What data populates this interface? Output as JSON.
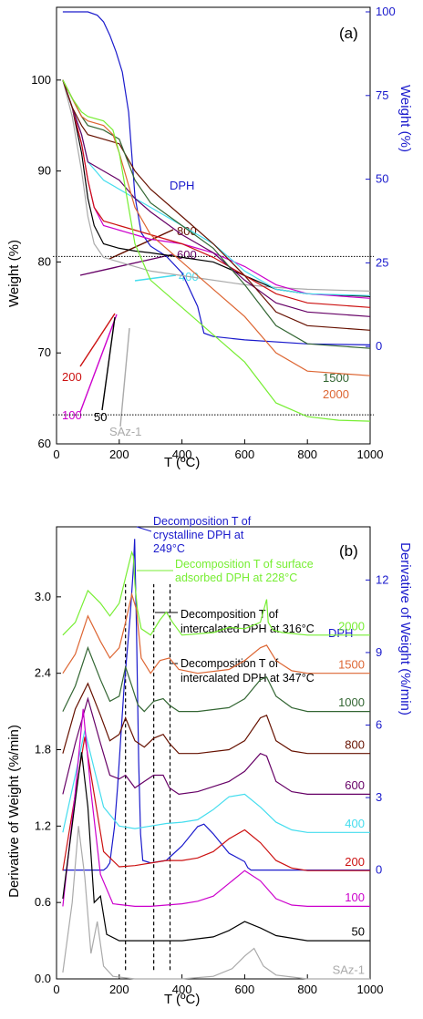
{
  "colors": {
    "DPH": "#1a1acc",
    "SAz-1": "#aaaaaa",
    "50": "#000000",
    "100": "#cc00cc",
    "200": "#cc1111",
    "400": "#44ddee",
    "600": "#660066",
    "800": "#661100",
    "1000": "#336633",
    "1500": "#dd6633",
    "2000": "#77ee33"
  },
  "chart_data": [
    {
      "type": "line",
      "panel_label": "(a)",
      "xlabel": "T (ºC)",
      "ylabel": "Weight (%)",
      "ylabel_right": "Weight (%)",
      "xlim": [
        0,
        1000
      ],
      "ylim": [
        60,
        108
      ],
      "ylim_right": [
        0,
        100
      ],
      "xticks": [
        "0",
        "200",
        "400",
        "600",
        "800",
        "1000"
      ],
      "yticks": [
        "60",
        "70",
        "80",
        "90",
        "100"
      ],
      "yticks_right": [
        "0",
        "25",
        "50",
        "75",
        "100"
      ],
      "hlines": [
        80.6,
        63.2
      ],
      "arrow_labels": [
        "800",
        "600",
        "400",
        "200",
        "100",
        "50",
        "SAz-1"
      ],
      "series": [
        {
          "name": "DPH",
          "axis": "right",
          "x": [
            20,
            100,
            130,
            150,
            170,
            190,
            210,
            230,
            250,
            270,
            300,
            350,
            400,
            450,
            470,
            500,
            600,
            800,
            1000
          ],
          "y": [
            100,
            100,
            99,
            97,
            93,
            88,
            82,
            70,
            45,
            34,
            30,
            27,
            22,
            12,
            4,
            3,
            2,
            0.8,
            0.5
          ]
        },
        {
          "name": "SAz-1",
          "x": [
            20,
            50,
            80,
            100,
            120,
            150,
            200,
            250,
            300,
            400,
            500,
            600,
            700,
            800,
            1000
          ],
          "y": [
            100,
            96,
            90,
            85,
            82,
            80.5,
            80,
            79.5,
            79,
            78.5,
            78,
            77.5,
            77.2,
            77,
            76.8
          ]
        },
        {
          "name": "50",
          "x": [
            20,
            50,
            80,
            100,
            120,
            150,
            200,
            250,
            300,
            400,
            500,
            600,
            700,
            800,
            1000
          ],
          "y": [
            100,
            97,
            92,
            87,
            84,
            82,
            81.5,
            81.2,
            81,
            80.5,
            80,
            78.5,
            77,
            76.5,
            76.2
          ]
        },
        {
          "name": "100",
          "x": [
            20,
            50,
            80,
            100,
            120,
            150,
            200,
            250,
            300,
            400,
            500,
            600,
            700,
            800,
            1000
          ],
          "y": [
            100,
            97,
            93,
            89,
            86,
            84,
            83.5,
            83,
            82.5,
            82,
            81,
            79.5,
            77.5,
            76.5,
            76
          ]
        },
        {
          "name": "200",
          "x": [
            20,
            50,
            80,
            100,
            120,
            150,
            200,
            250,
            300,
            400,
            500,
            600,
            700,
            800,
            1000
          ],
          "y": [
            100,
            97,
            93,
            89,
            86,
            84.5,
            84,
            83.5,
            83,
            82,
            80.5,
            78.5,
            76.5,
            75.5,
            75
          ]
        },
        {
          "name": "400",
          "x": [
            20,
            50,
            80,
            100,
            150,
            200,
            250,
            300,
            400,
            500,
            600,
            700,
            800,
            1000
          ],
          "y": [
            100,
            97,
            94,
            91,
            89,
            88,
            87,
            86,
            84,
            82,
            79,
            77,
            76.5,
            76.3
          ]
        },
        {
          "name": "600",
          "x": [
            20,
            50,
            80,
            100,
            150,
            200,
            250,
            300,
            400,
            500,
            600,
            700,
            800,
            1000
          ],
          "y": [
            100,
            97,
            94,
            91,
            90,
            89,
            87,
            85.5,
            83,
            81,
            78,
            75.5,
            74.5,
            74
          ]
        },
        {
          "name": "800",
          "x": [
            20,
            50,
            80,
            100,
            150,
            200,
            250,
            300,
            400,
            500,
            600,
            700,
            800,
            1000
          ],
          "y": [
            100,
            97,
            95,
            94,
            93.5,
            93,
            90,
            88,
            85,
            82,
            78.5,
            74.5,
            73,
            72.5
          ]
        },
        {
          "name": "1000",
          "x": [
            20,
            50,
            80,
            100,
            150,
            200,
            250,
            300,
            400,
            500,
            600,
            700,
            800,
            1000
          ],
          "y": [
            100,
            98,
            96,
            95,
            94.5,
            93.5,
            89,
            86.5,
            84,
            81.5,
            77.5,
            73,
            71,
            70.5
          ]
        },
        {
          "name": "1500",
          "x": [
            20,
            50,
            80,
            100,
            150,
            180,
            200,
            250,
            300,
            400,
            500,
            600,
            700,
            800,
            1000
          ],
          "y": [
            100,
            98,
            96,
            95.5,
            95,
            94,
            92,
            86,
            83,
            80,
            77,
            74,
            70,
            68,
            67.5
          ]
        },
        {
          "name": "2000",
          "x": [
            20,
            50,
            80,
            100,
            150,
            180,
            200,
            230,
            250,
            300,
            400,
            500,
            600,
            700,
            800,
            900,
            1000
          ],
          "y": [
            100,
            98,
            96.5,
            96,
            95.5,
            94.5,
            92,
            86,
            82,
            78,
            75,
            72,
            69,
            64.5,
            63,
            62.6,
            62.5
          ]
        }
      ]
    },
    {
      "type": "line",
      "panel_label": "(b)",
      "xlabel": "T (ºC)",
      "ylabel": "Derivative of Weight (%/min)",
      "ylabel_right": "Derivative of Weight (%/min)",
      "xlim": [
        0,
        1000
      ],
      "ylim": [
        0,
        3.55
      ],
      "ylim_right": [
        -4.5,
        14.2
      ],
      "xticks": [
        "0",
        "200",
        "400",
        "600",
        "800",
        "1000"
      ],
      "yticks": [
        "0.0",
        "0.6",
        "1.2",
        "1.8",
        "2.4",
        "3.0"
      ],
      "yticks_right": [
        "0",
        "3",
        "6",
        "9",
        "12"
      ],
      "vlines": [
        220,
        310,
        362
      ],
      "annotations": [
        {
          "text": [
            "Decomposition T of",
            "crystalline DPH at",
            "249°C"
          ],
          "color": "#1a1acc"
        },
        {
          "text": [
            "Decomposition T of surface",
            "adsorbed DPH at 228°C"
          ],
          "color": "#77ee33"
        },
        {
          "text": [
            "Decomposition T of",
            "intercalated DPH at 316°C"
          ],
          "color": "#000000"
        },
        {
          "text": [
            "Decomposition T of",
            "intercalated DPH at 347°C"
          ],
          "color": "#000000"
        }
      ],
      "series": [
        {
          "name": "DPH",
          "axis": "right",
          "x": [
            20,
            150,
            160,
            170,
            175,
            185,
            195,
            205,
            215,
            225,
            235,
            245,
            249,
            255,
            262,
            268,
            275,
            300,
            350,
            400,
            450,
            470,
            500,
            550,
            600,
            610,
            620,
            700,
            800,
            1000
          ],
          "y": [
            0,
            0,
            0.1,
            0.3,
            0.8,
            1.8,
            3.5,
            5.5,
            7.5,
            9,
            10.5,
            12.5,
            13.7,
            10,
            4.5,
            1.5,
            0.4,
            0.3,
            0.4,
            1,
            1.8,
            1.9,
            1.5,
            0.7,
            0.35,
            0.1,
            0,
            0,
            0,
            0
          ]
        },
        {
          "name": "2000",
          "offset": 2.7,
          "x": [
            20,
            60,
            100,
            140,
            170,
            200,
            230,
            240,
            245,
            250,
            258,
            270,
            300,
            330,
            350,
            370,
            400,
            500,
            550,
            600,
            650,
            670,
            675,
            690,
            720,
            800,
            1000
          ],
          "y": [
            0,
            0.1,
            0.35,
            0.25,
            0.15,
            0.25,
            0.55,
            0.65,
            0.62,
            0.4,
            0.2,
            0.05,
            0.0,
            0.12,
            0.18,
            0.1,
            0.0,
            0.02,
            0.06,
            0.05,
            0.1,
            0.28,
            0.1,
            0.04,
            0.02,
            0.0,
            0.0
          ]
        },
        {
          "name": "1500",
          "offset": 2.4,
          "x": [
            20,
            60,
            100,
            140,
            170,
            200,
            220,
            240,
            255,
            270,
            300,
            330,
            360,
            390,
            450,
            550,
            600,
            650,
            670,
            700,
            750,
            800,
            1000
          ],
          "y": [
            0,
            0.15,
            0.45,
            0.25,
            0.12,
            0.2,
            0.4,
            0.62,
            0.5,
            0.12,
            0.0,
            0.1,
            0.12,
            0.03,
            0.0,
            0.03,
            0.1,
            0.2,
            0.22,
            0.1,
            0.02,
            0.0,
            0.0
          ]
        },
        {
          "name": "1000",
          "offset": 2.1,
          "x": [
            20,
            60,
            100,
            140,
            170,
            200,
            220,
            240,
            260,
            280,
            310,
            340,
            360,
            390,
            450,
            550,
            600,
            650,
            670,
            700,
            750,
            800,
            1000
          ],
          "y": [
            0,
            0.2,
            0.5,
            0.25,
            0.08,
            0.12,
            0.35,
            0.2,
            0.05,
            0.0,
            0.08,
            0.1,
            0.05,
            0.0,
            0.0,
            0.03,
            0.1,
            0.25,
            0.27,
            0.12,
            0.03,
            0.0,
            0.0
          ]
        },
        {
          "name": "800",
          "offset": 1.77,
          "x": [
            20,
            60,
            100,
            140,
            170,
            200,
            220,
            250,
            280,
            310,
            340,
            360,
            390,
            450,
            550,
            600,
            650,
            670,
            700,
            750,
            800,
            1000
          ],
          "y": [
            0,
            0.35,
            0.55,
            0.3,
            0.1,
            0.15,
            0.28,
            0.1,
            0.05,
            0.12,
            0.15,
            0.08,
            0.0,
            0.0,
            0.03,
            0.1,
            0.28,
            0.3,
            0.1,
            0.02,
            0.0,
            0.0
          ]
        },
        {
          "name": "600",
          "offset": 1.45,
          "x": [
            20,
            60,
            100,
            140,
            170,
            200,
            220,
            250,
            280,
            310,
            340,
            360,
            390,
            450,
            550,
            600,
            650,
            670,
            700,
            750,
            800,
            1000
          ],
          "y": [
            0,
            0.4,
            0.75,
            0.4,
            0.15,
            0.12,
            0.15,
            0.05,
            0.1,
            0.15,
            0.15,
            0.05,
            0.0,
            0.02,
            0.1,
            0.18,
            0.32,
            0.3,
            0.1,
            0.02,
            0.0,
            0.0
          ]
        },
        {
          "name": "400",
          "offset": 1.15,
          "x": [
            20,
            60,
            90,
            120,
            150,
            200,
            250,
            300,
            350,
            400,
            450,
            500,
            550,
            600,
            650,
            700,
            750,
            800,
            1000
          ],
          "y": [
            0,
            0.45,
            0.8,
            0.5,
            0.2,
            0.05,
            0.03,
            0.05,
            0.07,
            0.08,
            0.1,
            0.18,
            0.28,
            0.3,
            0.2,
            0.08,
            0.02,
            0.0,
            0.0
          ]
        },
        {
          "name": "200",
          "offset": 0.85,
          "x": [
            20,
            60,
            90,
            120,
            150,
            200,
            250,
            300,
            350,
            400,
            450,
            500,
            550,
            600,
            650,
            700,
            750,
            800,
            1000
          ],
          "y": [
            0,
            0.6,
            1.05,
            0.6,
            0.15,
            0.03,
            0.04,
            0.06,
            0.08,
            0.08,
            0.1,
            0.15,
            0.25,
            0.32,
            0.22,
            0.08,
            0.02,
            0.0,
            0.0
          ]
        },
        {
          "name": "100",
          "offset": 0.57,
          "x": [
            20,
            60,
            85,
            110,
            140,
            180,
            250,
            300,
            400,
            450,
            500,
            550,
            600,
            650,
            700,
            750,
            800,
            1000
          ],
          "y": [
            0,
            0.9,
            1.55,
            0.9,
            0.25,
            0.02,
            0.0,
            0.0,
            0.02,
            0.04,
            0.08,
            0.18,
            0.28,
            0.2,
            0.06,
            0.01,
            0.0,
            0.0
          ]
        },
        {
          "name": "50",
          "offset": 0.3,
          "x": [
            20,
            60,
            80,
            100,
            120,
            140,
            160,
            200,
            300,
            400,
            500,
            550,
            600,
            650,
            700,
            800,
            1000
          ],
          "y": [
            0.33,
            1.1,
            1.48,
            1.05,
            0.3,
            0.35,
            0.05,
            0.0,
            0.0,
            0.0,
            0.03,
            0.08,
            0.15,
            0.1,
            0.04,
            0.0,
            0.0
          ]
        },
        {
          "name": "SAz-1",
          "offset": 0.0,
          "x": [
            20,
            50,
            70,
            90,
            110,
            130,
            150,
            180,
            250,
            400,
            500,
            560,
            600,
            630,
            660,
            700,
            800,
            1000
          ],
          "y": [
            0.05,
            0.6,
            1.2,
            0.8,
            0.2,
            0.45,
            0.1,
            0.02,
            0.0,
            0.0,
            0.02,
            0.08,
            0.18,
            0.24,
            0.1,
            0.03,
            0.0,
            0.0
          ]
        }
      ]
    }
  ]
}
